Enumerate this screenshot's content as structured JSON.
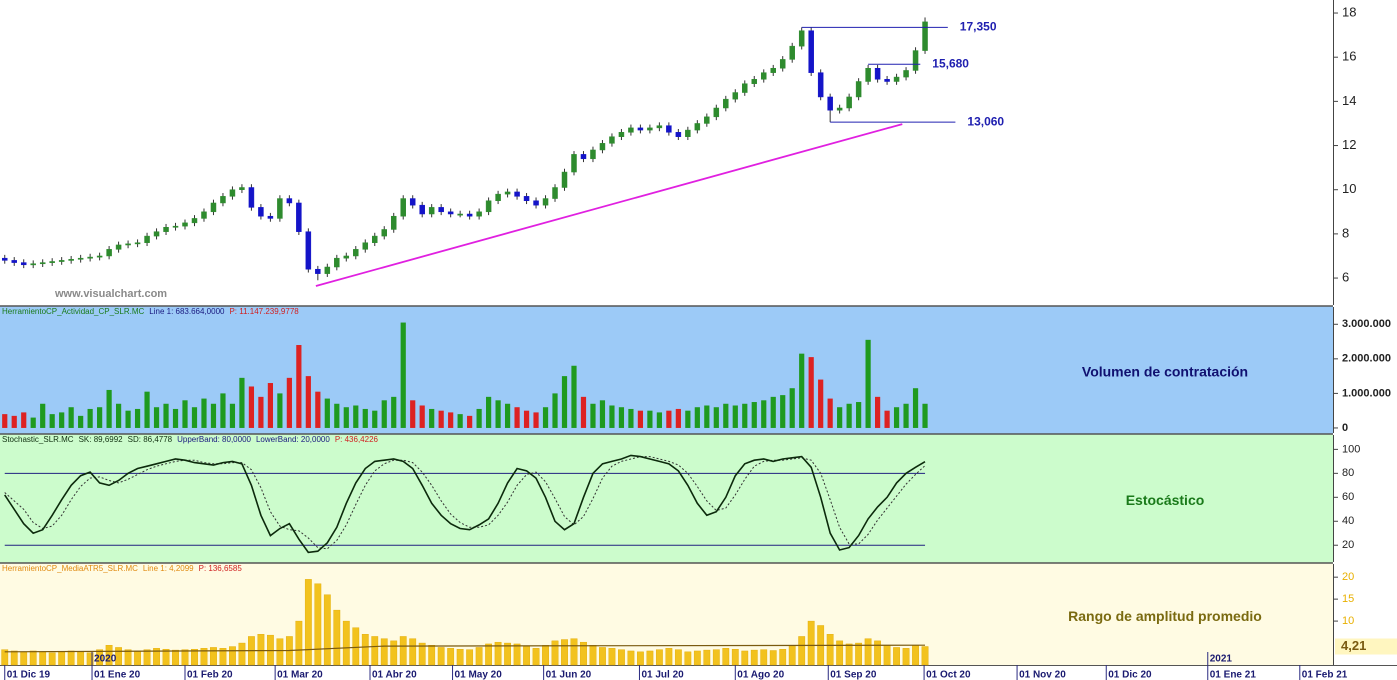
{
  "chart_data": {
    "type": "multi-panel",
    "x": [
      0,
      1,
      2,
      3,
      4,
      5,
      6,
      7,
      8,
      9,
      10,
      11,
      12,
      13,
      14,
      15,
      16,
      17,
      18,
      19,
      20,
      21,
      22,
      23,
      24,
      25,
      26,
      27,
      28,
      29,
      30,
      31,
      32,
      33,
      34,
      35,
      36,
      37,
      38,
      39,
      40,
      41,
      42,
      43,
      44,
      45,
      46,
      47,
      48,
      49,
      50,
      51,
      52,
      53,
      54,
      55,
      56,
      57,
      58,
      59,
      60,
      61,
      62,
      63,
      64,
      65,
      66,
      67,
      68,
      69,
      70,
      71,
      72,
      73,
      74,
      75,
      76,
      77,
      78,
      79,
      80,
      81,
      82,
      83,
      84,
      85,
      86,
      87,
      88,
      89,
      90,
      91,
      92,
      93,
      94,
      95,
      96,
      97
    ],
    "xlim": [
      -0.5,
      140
    ],
    "xticks": [
      {
        "value": 0,
        "label": "01 Dic 19"
      },
      {
        "value": 9.2,
        "label": "01 Ene 20"
      },
      {
        "value": 19,
        "label": "01 Feb 20"
      },
      {
        "value": 28.5,
        "label": "01 Mar 20"
      },
      {
        "value": 38.5,
        "label": "01 Abr 20"
      },
      {
        "value": 47.2,
        "label": "01 May 20"
      },
      {
        "value": 56.8,
        "label": "01 Jun 20"
      },
      {
        "value": 66.9,
        "label": "01 Jul 20"
      },
      {
        "value": 77,
        "label": "01 Ago 20"
      },
      {
        "value": 86.8,
        "label": "01 Sep 20"
      },
      {
        "value": 96.9,
        "label": "01 Oct 20"
      },
      {
        "value": 106.7,
        "label": "01 Nov 20"
      },
      {
        "value": 116.1,
        "label": "01 Dic 20"
      },
      {
        "value": 126.8,
        "label": "01 Ene 21"
      },
      {
        "value": 136.5,
        "label": "01 Feb 21"
      }
    ],
    "year_labels": [
      {
        "value": 9.2,
        "label": "2020"
      },
      {
        "value": 126.8,
        "label": "2021"
      }
    ],
    "panels": [
      {
        "type": "candlestick",
        "watermark": "www.visualchart.com",
        "ylim": [
          4.78,
          18.59
        ],
        "yticks": [
          6,
          8,
          10,
          12,
          14,
          16,
          18
        ],
        "up_color": "#2e8b2e",
        "down_color": "#1414c8",
        "open": [
          6.9,
          6.8,
          6.7,
          6.6,
          6.65,
          6.7,
          6.75,
          6.8,
          6.85,
          6.9,
          6.95,
          7.0,
          7.3,
          7.5,
          7.55,
          7.6,
          7.9,
          8.1,
          8.3,
          8.35,
          8.5,
          8.7,
          9.0,
          9.4,
          9.7,
          10.0,
          10.1,
          9.2,
          8.8,
          8.7,
          9.6,
          9.4,
          8.1,
          6.4,
          6.2,
          6.5,
          6.9,
          7.0,
          7.3,
          7.6,
          7.9,
          8.2,
          8.8,
          9.6,
          9.3,
          8.9,
          9.2,
          9.0,
          8.9,
          8.9,
          8.8,
          9.0,
          9.5,
          9.8,
          9.9,
          9.7,
          9.5,
          9.3,
          9.6,
          10.1,
          10.8,
          11.6,
          11.4,
          11.8,
          12.1,
          12.4,
          12.6,
          12.8,
          12.7,
          12.8,
          12.9,
          12.6,
          12.4,
          12.7,
          13.0,
          13.3,
          13.7,
          14.1,
          14.4,
          14.8,
          15.0,
          15.3,
          15.5,
          15.9,
          16.5,
          17.2,
          15.3,
          14.2,
          13.6,
          13.7,
          14.2,
          14.9,
          15.5,
          15.0,
          14.9,
          15.1,
          15.4,
          16.3
        ],
        "high": [
          7.05,
          6.95,
          6.85,
          6.8,
          6.85,
          6.9,
          6.95,
          7.0,
          7.05,
          7.1,
          7.15,
          7.45,
          7.65,
          7.7,
          7.75,
          8.05,
          8.25,
          8.45,
          8.5,
          8.65,
          8.85,
          9.15,
          9.55,
          9.85,
          10.15,
          10.25,
          10.25,
          9.35,
          8.95,
          9.75,
          9.75,
          9.55,
          8.25,
          6.55,
          6.65,
          7.05,
          7.15,
          7.45,
          7.75,
          8.05,
          8.35,
          8.95,
          9.75,
          9.75,
          9.45,
          9.35,
          9.35,
          9.15,
          9.05,
          9.05,
          9.15,
          9.65,
          9.95,
          10.05,
          10.05,
          9.85,
          9.65,
          9.75,
          10.25,
          10.95,
          11.75,
          11.75,
          11.95,
          12.25,
          12.55,
          12.75,
          12.95,
          12.95,
          12.95,
          13.05,
          13.05,
          12.75,
          12.85,
          13.15,
          13.45,
          13.85,
          14.25,
          14.55,
          14.95,
          15.15,
          15.45,
          15.65,
          16.05,
          16.65,
          17.35,
          17.35,
          15.45,
          14.35,
          13.85,
          14.35,
          15.05,
          15.65,
          15.65,
          15.15,
          15.25,
          15.55,
          16.45,
          17.8
        ],
        "low": [
          6.65,
          6.55,
          6.45,
          6.45,
          6.5,
          6.55,
          6.6,
          6.65,
          6.7,
          6.75,
          6.8,
          6.85,
          7.15,
          7.35,
          7.4,
          7.45,
          7.75,
          7.95,
          8.15,
          8.2,
          8.35,
          8.55,
          8.85,
          9.25,
          9.55,
          9.85,
          9.05,
          8.65,
          8.55,
          8.55,
          9.25,
          7.95,
          6.25,
          5.9,
          6.05,
          6.35,
          6.75,
          6.85,
          7.15,
          7.45,
          7.75,
          8.05,
          8.65,
          9.15,
          8.75,
          8.75,
          8.85,
          8.75,
          8.75,
          8.65,
          8.65,
          8.85,
          9.35,
          9.65,
          9.55,
          9.35,
          9.15,
          9.15,
          9.45,
          9.95,
          10.65,
          11.25,
          11.25,
          11.65,
          11.95,
          12.25,
          12.45,
          12.55,
          12.55,
          12.65,
          12.45,
          12.25,
          12.25,
          12.55,
          12.85,
          13.15,
          13.55,
          13.95,
          14.25,
          14.65,
          14.85,
          15.15,
          15.35,
          15.75,
          16.35,
          15.15,
          14.05,
          13.06,
          13.45,
          13.55,
          14.05,
          14.75,
          14.85,
          14.75,
          14.75,
          14.95,
          15.25,
          16.15
        ],
        "close": [
          6.8,
          6.7,
          6.6,
          6.65,
          6.7,
          6.75,
          6.8,
          6.85,
          6.9,
          6.95,
          7.0,
          7.3,
          7.5,
          7.55,
          7.6,
          7.9,
          8.1,
          8.3,
          8.35,
          8.5,
          8.7,
          9.0,
          9.4,
          9.7,
          10.0,
          10.1,
          9.2,
          8.8,
          8.7,
          9.6,
          9.4,
          8.1,
          6.4,
          6.2,
          6.5,
          6.9,
          7.0,
          7.3,
          7.6,
          7.9,
          8.2,
          8.8,
          9.6,
          9.3,
          8.9,
          9.2,
          9.0,
          8.9,
          8.9,
          8.8,
          9.0,
          9.5,
          9.8,
          9.9,
          9.7,
          9.5,
          9.3,
          9.6,
          10.1,
          10.8,
          11.6,
          11.4,
          11.8,
          12.1,
          12.4,
          12.6,
          12.8,
          12.7,
          12.8,
          12.9,
          12.6,
          12.4,
          12.7,
          13.0,
          13.3,
          13.7,
          14.1,
          14.4,
          14.8,
          15.0,
          15.3,
          15.5,
          15.9,
          16.5,
          17.2,
          15.3,
          14.2,
          13.6,
          13.7,
          14.2,
          14.9,
          15.5,
          15.0,
          14.9,
          15.1,
          15.4,
          16.3,
          17.6
        ],
        "levels": [
          {
            "value": 17.35,
            "label": "17,350",
            "from": 84,
            "to": 99.4
          },
          {
            "value": 15.68,
            "label": "15,680",
            "from": 91,
            "to": 96.5
          },
          {
            "value": 13.06,
            "label": "13,060",
            "from": 87,
            "to": 100.2
          }
        ],
        "level_color": "#2020b0",
        "trendline": {
          "x": [
            32.8,
            94.6
          ],
          "y": [
            5.64,
            12.97
          ],
          "color": "#e020e0"
        }
      },
      {
        "type": "volume",
        "title": "Volumen de contratación",
        "title_color": "#101070",
        "background": "#9ccaf7",
        "legend": [
          {
            "text": "HerramientoCP_Actividad_CP_SLR.MC",
            "color": "#1a7a1a"
          },
          {
            "text": "Line 1: 683.664,0000",
            "color": "#1a1a80"
          },
          {
            "text": "P: 11.147.239,9778",
            "color": "#d02020"
          }
        ],
        "ylim": [
          -146000,
          3500000
        ],
        "yticks": [
          {
            "value": 3000000,
            "label": "3.000.000"
          },
          {
            "value": 2000000,
            "label": "2.000.000"
          },
          {
            "value": 1000000,
            "label": "1.000.000"
          },
          0
        ],
        "up_color": "#1f9a1f",
        "down_color": "#dd2222",
        "values": [
          400000,
          350000,
          450000,
          300000,
          700000,
          400000,
          450000,
          600000,
          350000,
          550000,
          600000,
          1100000,
          700000,
          500000,
          550000,
          1050000,
          600000,
          700000,
          550000,
          800000,
          600000,
          850000,
          700000,
          1000000,
          700000,
          1450000,
          1200000,
          900000,
          1300000,
          1000000,
          1450000,
          2400000,
          1500000,
          1050000,
          850000,
          700000,
          600000,
          650000,
          550000,
          500000,
          800000,
          900000,
          3050000,
          800000,
          650000,
          550000,
          500000,
          450000,
          400000,
          350000,
          550000,
          900000,
          800000,
          700000,
          600000,
          500000,
          450000,
          600000,
          1000000,
          1500000,
          1800000,
          900000,
          700000,
          800000,
          650000,
          600000,
          550000,
          500000,
          500000,
          450000,
          500000,
          550000,
          500000,
          600000,
          650000,
          600000,
          700000,
          650000,
          700000,
          750000,
          800000,
          900000,
          950000,
          1150000,
          2150000,
          2050000,
          1400000,
          850000,
          600000,
          700000,
          750000,
          2550000,
          900000,
          500000,
          600000,
          700000,
          1150000,
          700000
        ]
      },
      {
        "type": "stochastic",
        "title": "Estocástico",
        "title_color": "#1a7a1a",
        "background": "#ccfccc",
        "legend": [
          {
            "text": "Stochastic_SLR.MC",
            "color": "#103010"
          },
          {
            "text": "SK: 89,6992",
            "color": "#103010"
          },
          {
            "text": "SD: 86,4778",
            "color": "#103010"
          },
          {
            "text": "UpperBand: 80,0000",
            "color": "#1a1a80"
          },
          {
            "text": "LowerBand: 20,0000",
            "color": "#1a1a80"
          },
          {
            "text": "P: 436,4226",
            "color": "#d02020"
          }
        ],
        "ylim": [
          6,
          112
        ],
        "yticks": [
          20,
          40,
          60,
          80,
          100
        ],
        "bands": [
          80,
          20
        ],
        "band_color": "#202080",
        "sk": [
          62,
          50,
          38,
          30,
          33,
          45,
          58,
          70,
          78,
          81,
          72,
          70,
          74,
          80,
          84,
          86,
          88,
          90,
          92,
          91,
          89,
          88,
          87,
          89,
          90,
          88,
          70,
          45,
          28,
          34,
          38,
          25,
          14,
          15,
          22,
          35,
          55,
          72,
          84,
          90,
          91,
          92,
          90,
          84,
          70,
          55,
          45,
          38,
          34,
          33,
          37,
          42,
          55,
          72,
          84,
          82,
          76,
          60,
          40,
          33,
          38,
          60,
          80,
          88,
          90,
          92,
          95,
          94,
          92,
          90,
          88,
          82,
          70,
          55,
          45,
          48,
          60,
          78,
          88,
          91,
          92,
          90,
          92,
          93,
          94,
          85,
          60,
          30,
          16,
          18,
          28,
          42,
          52,
          60,
          72,
          80,
          85,
          89.7
        ],
        "sd": [
          64,
          57,
          50,
          39,
          34,
          36,
          45,
          58,
          69,
          76,
          77,
          74,
          72,
          75,
          79,
          83,
          86,
          88,
          90,
          91,
          91,
          89,
          88,
          88,
          89,
          89,
          83,
          68,
          48,
          36,
          33,
          32,
          26,
          18,
          17,
          24,
          37,
          54,
          70,
          82,
          88,
          91,
          91,
          89,
          81,
          70,
          57,
          46,
          39,
          35,
          35,
          37,
          45,
          56,
          70,
          79,
          81,
          73,
          59,
          44,
          37,
          44,
          59,
          76,
          86,
          90,
          92,
          94,
          94,
          92,
          90,
          87,
          80,
          69,
          57,
          49,
          51,
          62,
          75,
          86,
          90,
          91,
          91,
          92,
          93,
          91,
          80,
          58,
          35,
          21,
          21,
          29,
          41,
          51,
          61,
          71,
          79,
          86.5
        ]
      },
      {
        "type": "atr",
        "title": "Rango de amplitud promedio",
        "title_color": "#7a6a10",
        "background": "#fffbe3",
        "color": "#f2c21e",
        "legend": [
          {
            "text": "HerramientoCP_MediaATR5_SLR.MC",
            "color": "#e08a10"
          },
          {
            "text": "Line 1: 4,2099",
            "color": "#e08a10"
          },
          {
            "text": "P: 136,6585",
            "color": "#d02020"
          }
        ],
        "ylim": [
          0,
          23
        ],
        "yticks": [
          10,
          15,
          20
        ],
        "last_value": {
          "value": 4.21,
          "label": "4,21"
        },
        "values": [
          3.5,
          3.2,
          3.0,
          3.2,
          3.0,
          2.8,
          3.0,
          3.2,
          3.0,
          2.8,
          3.5,
          4.5,
          4.0,
          3.5,
          3.2,
          3.5,
          3.8,
          3.6,
          3.4,
          3.5,
          3.6,
          3.8,
          4.0,
          3.8,
          4.2,
          5.0,
          6.5,
          7.0,
          6.8,
          6.0,
          6.5,
          10.0,
          19.5,
          18.5,
          16.0,
          12.5,
          10.0,
          8.5,
          7.0,
          6.5,
          6.0,
          5.5,
          6.5,
          6.0,
          5.0,
          4.5,
          4.0,
          3.8,
          3.6,
          3.5,
          4.0,
          4.8,
          5.2,
          5.0,
          4.8,
          4.2,
          3.8,
          4.5,
          5.5,
          5.8,
          6.0,
          5.2,
          4.5,
          4.0,
          3.8,
          3.5,
          3.2,
          3.0,
          3.2,
          3.5,
          3.8,
          3.5,
          3.0,
          3.2,
          3.4,
          3.5,
          3.8,
          3.6,
          3.2,
          3.4,
          3.5,
          3.3,
          3.6,
          4.5,
          6.5,
          10.0,
          9.0,
          7.0,
          5.5,
          4.8,
          5.0,
          6.0,
          5.5,
          4.5,
          4.0,
          3.8,
          4.5,
          4.21
        ],
        "average": {
          "x": [
            0,
            30,
            40,
            97
          ],
          "values": [
            3.0,
            3.3,
            4.3,
            4.5
          ],
          "color": "#7a5a10"
        }
      }
    ]
  }
}
